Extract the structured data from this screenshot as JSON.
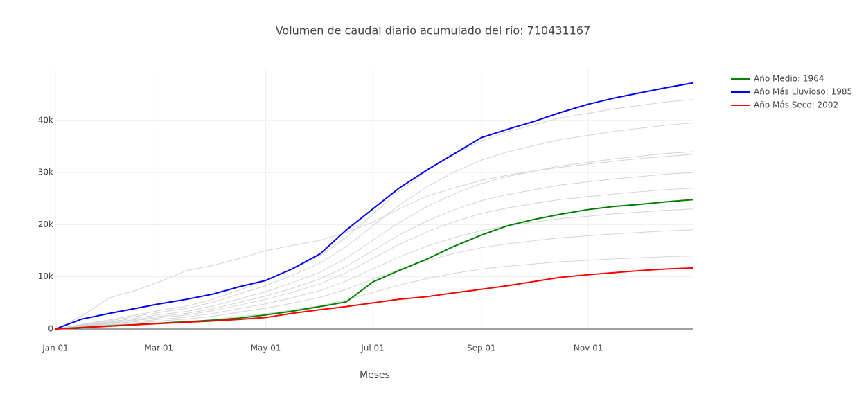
{
  "chart_data": {
    "type": "line",
    "title": "Volumen de caudal diario acumulado del río: 710431167",
    "xlabel": "Meses",
    "x": [
      0,
      15,
      31,
      45,
      59,
      75,
      90,
      105,
      120,
      135,
      151,
      166,
      181,
      196,
      212,
      227,
      243,
      258,
      273,
      288,
      304,
      319,
      334,
      349,
      364
    ],
    "xlim": [
      0,
      364
    ],
    "xticks": [
      {
        "value": 0,
        "label": "Jan 01"
      },
      {
        "value": 59,
        "label": "Mar 01"
      },
      {
        "value": 120,
        "label": "May 01"
      },
      {
        "value": 181,
        "label": "Jul 01"
      },
      {
        "value": 243,
        "label": "Sep 01"
      },
      {
        "value": 304,
        "label": "Nov 01"
      }
    ],
    "ylim": [
      0,
      49800
    ],
    "yticks": [
      0,
      {
        "value": 10000,
        "label": "10k"
      },
      {
        "value": 20000,
        "label": "20k"
      },
      {
        "value": 30000,
        "label": "30k"
      },
      {
        "value": 40000,
        "label": "40k"
      }
    ],
    "grid": true,
    "legend": "right",
    "series": [
      {
        "color": "#d3d3d3",
        "values": [
          0,
          880,
          1760,
          2640,
          3520,
          4400,
          5720,
          7480,
          9240,
          11440,
          14080,
          17600,
          22000,
          26400,
          30360,
          33440,
          36080,
          37840,
          39160,
          40480,
          41360,
          42240,
          42900,
          43560,
          44000
        ]
      },
      {
        "color": "#d3d3d3",
        "values": [
          0,
          790,
          1580,
          2370,
          3160,
          3950,
          5135,
          6715,
          8295,
          10270,
          12640,
          15800,
          19750,
          23700,
          27255,
          30020,
          32390,
          33970,
          35155,
          36340,
          37130,
          37920,
          38513,
          39105,
          39500
        ]
      },
      {
        "color": "#d3d3d3",
        "values": [
          0,
          680,
          1360,
          2040,
          2720,
          3400,
          4420,
          5780,
          7140,
          8840,
          10880,
          13600,
          17000,
          20400,
          23460,
          25840,
          27880,
          29240,
          30260,
          31280,
          31960,
          32640,
          33150,
          33660,
          34000
        ]
      },
      {
        "color": "#d3d3d3",
        "values": [
          0,
          600,
          1200,
          1800,
          2400,
          3000,
          3900,
          5100,
          6300,
          7800,
          9600,
          12000,
          15000,
          18000,
          20700,
          22800,
          24600,
          25800,
          26700,
          27600,
          28200,
          28800,
          29250,
          29700,
          30000
        ]
      },
      {
        "color": "#d3d3d3",
        "values": [
          0,
          540,
          1080,
          1620,
          2160,
          2700,
          3510,
          4590,
          5670,
          7020,
          8640,
          10800,
          13500,
          16200,
          18630,
          20520,
          22140,
          23220,
          24030,
          24840,
          25380,
          25920,
          26325,
          26730,
          27000
        ]
      },
      {
        "color": "#d3d3d3",
        "values": [
          0,
          460,
          920,
          1380,
          1840,
          2300,
          2990,
          3910,
          4830,
          5980,
          7360,
          9200,
          11500,
          13800,
          15870,
          17480,
          18860,
          19780,
          20470,
          21160,
          21620,
          22080,
          22425,
          22770,
          23000
        ]
      },
      {
        "color": "#d3d3d3",
        "values": [
          0,
          380,
          760,
          1140,
          1520,
          1900,
          2470,
          3230,
          3990,
          4940,
          6080,
          7600,
          9500,
          11400,
          13110,
          14440,
          15580,
          16340,
          16910,
          17480,
          17860,
          18240,
          18525,
          18810,
          19000
        ]
      },
      {
        "color": "#d3d3d3",
        "values": [
          0,
          280,
          560,
          840,
          1120,
          1400,
          1820,
          2380,
          2940,
          3640,
          4480,
          5600,
          7000,
          8400,
          9660,
          10640,
          11480,
          12040,
          12460,
          12880,
          13160,
          13440,
          13650,
          13860,
          14000
        ]
      },
      {
        "color": "#d3d3d3",
        "values": [
          0,
          2500,
          6000,
          7300,
          9000,
          11200,
          12200,
          13500,
          15000,
          16000,
          17000,
          18500,
          20500,
          23000,
          25500,
          27000,
          28500,
          29500,
          30300,
          31000,
          31600,
          32200,
          32700,
          33100,
          33500
        ]
      },
      {
        "name": "Año Medio: 1964",
        "color": "#008000",
        "values": [
          0,
          300,
          600,
          850,
          1100,
          1400,
          1700,
          2100,
          2700,
          3400,
          4300,
          5200,
          9000,
          11200,
          13400,
          15800,
          18000,
          19800,
          21000,
          22000,
          22900,
          23500,
          23900,
          24400,
          24800
        ]
      },
      {
        "name": "Año Más Lluvioso: 1985",
        "color": "#0000ff",
        "values": [
          0,
          1900,
          3000,
          3900,
          4800,
          5700,
          6700,
          8100,
          9300,
          11500,
          14400,
          19000,
          23000,
          27000,
          30500,
          33500,
          36700,
          38300,
          39800,
          41500,
          43100,
          44300,
          45300,
          46300,
          47200
        ]
      },
      {
        "name": "Año Más Seco: 2002",
        "color": "#ff0000",
        "values": [
          0,
          250,
          550,
          800,
          1050,
          1300,
          1550,
          1850,
          2200,
          3000,
          3700,
          4300,
          5000,
          5700,
          6200,
          6900,
          7600,
          8300,
          9100,
          9900,
          10400,
          10800,
          11200,
          11500,
          11700
        ]
      }
    ]
  }
}
